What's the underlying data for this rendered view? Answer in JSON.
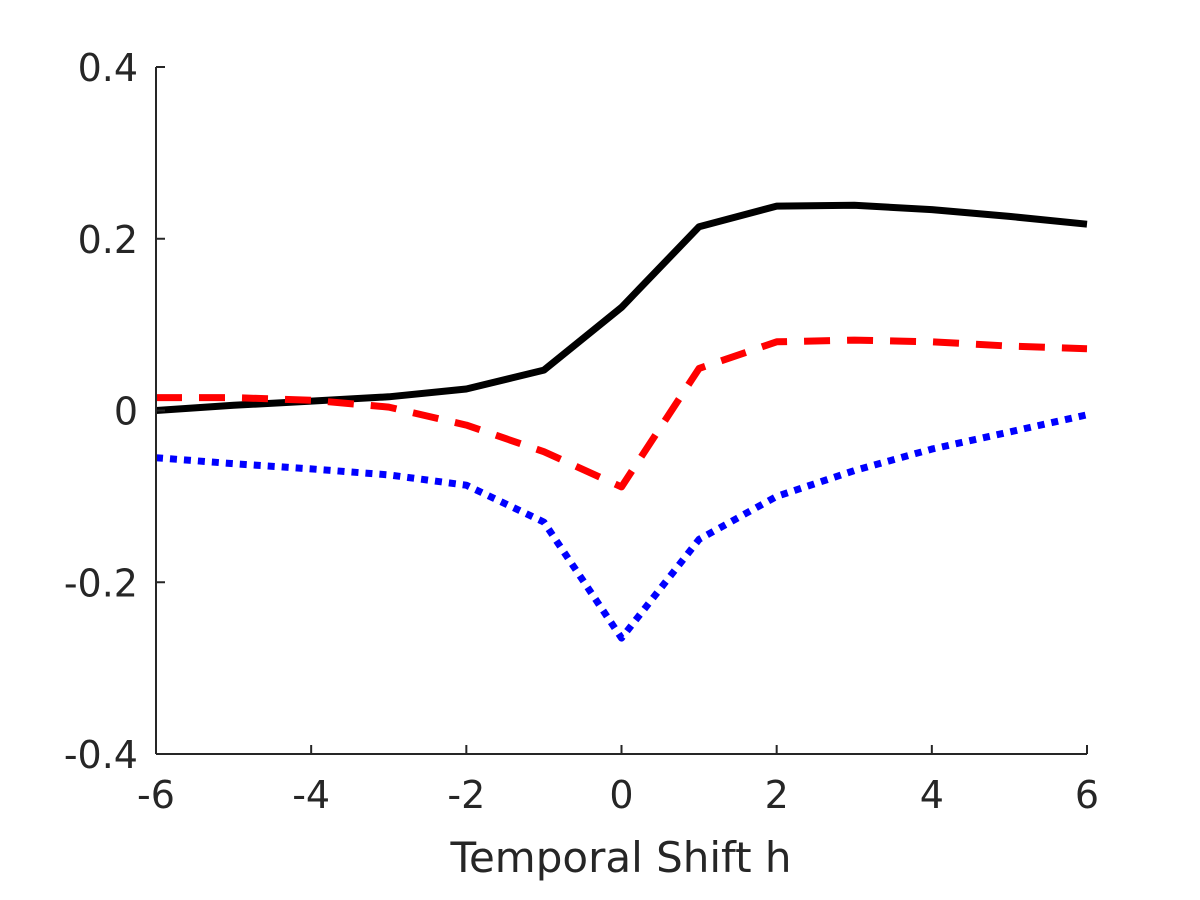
{
  "chart_data": {
    "type": "line",
    "title": "",
    "xlabel": "Temporal Shift h",
    "ylabel": "",
    "xlim": [
      -6,
      6
    ],
    "ylim": [
      -0.4,
      0.4
    ],
    "x_ticks": [
      -6,
      -4,
      -2,
      0,
      2,
      4,
      6
    ],
    "x_tick_labels": [
      "-6",
      "-4",
      "-2",
      "0",
      "2",
      "4",
      "6"
    ],
    "y_ticks": [
      -0.4,
      -0.2,
      0,
      0.2,
      0.4
    ],
    "y_tick_labels": [
      "-0.4",
      "-0.2",
      "0",
      "0.2",
      "0.4"
    ],
    "grid": false,
    "legend": "none",
    "x": [
      -6,
      -5,
      -4,
      -3,
      -2,
      -1,
      0,
      1,
      2,
      3,
      4,
      5,
      6
    ],
    "series": [
      {
        "style": "solid",
        "color": "#000000",
        "values": [
          0.0,
          0.006,
          0.011,
          0.016,
          0.025,
          0.047,
          0.12,
          0.214,
          0.238,
          0.239,
          0.234,
          0.226,
          0.217
        ]
      },
      {
        "style": "dashed",
        "color": "#ff0000",
        "values": [
          0.015,
          0.015,
          0.012,
          0.004,
          -0.017,
          -0.048,
          -0.089,
          0.049,
          0.08,
          0.082,
          0.08,
          0.075,
          0.072
        ]
      },
      {
        "style": "dotted",
        "color": "#0000ff",
        "values": [
          -0.055,
          -0.062,
          -0.068,
          -0.075,
          -0.087,
          -0.13,
          -0.265,
          -0.15,
          -0.1,
          -0.07,
          -0.045,
          -0.025,
          -0.005
        ]
      }
    ]
  }
}
